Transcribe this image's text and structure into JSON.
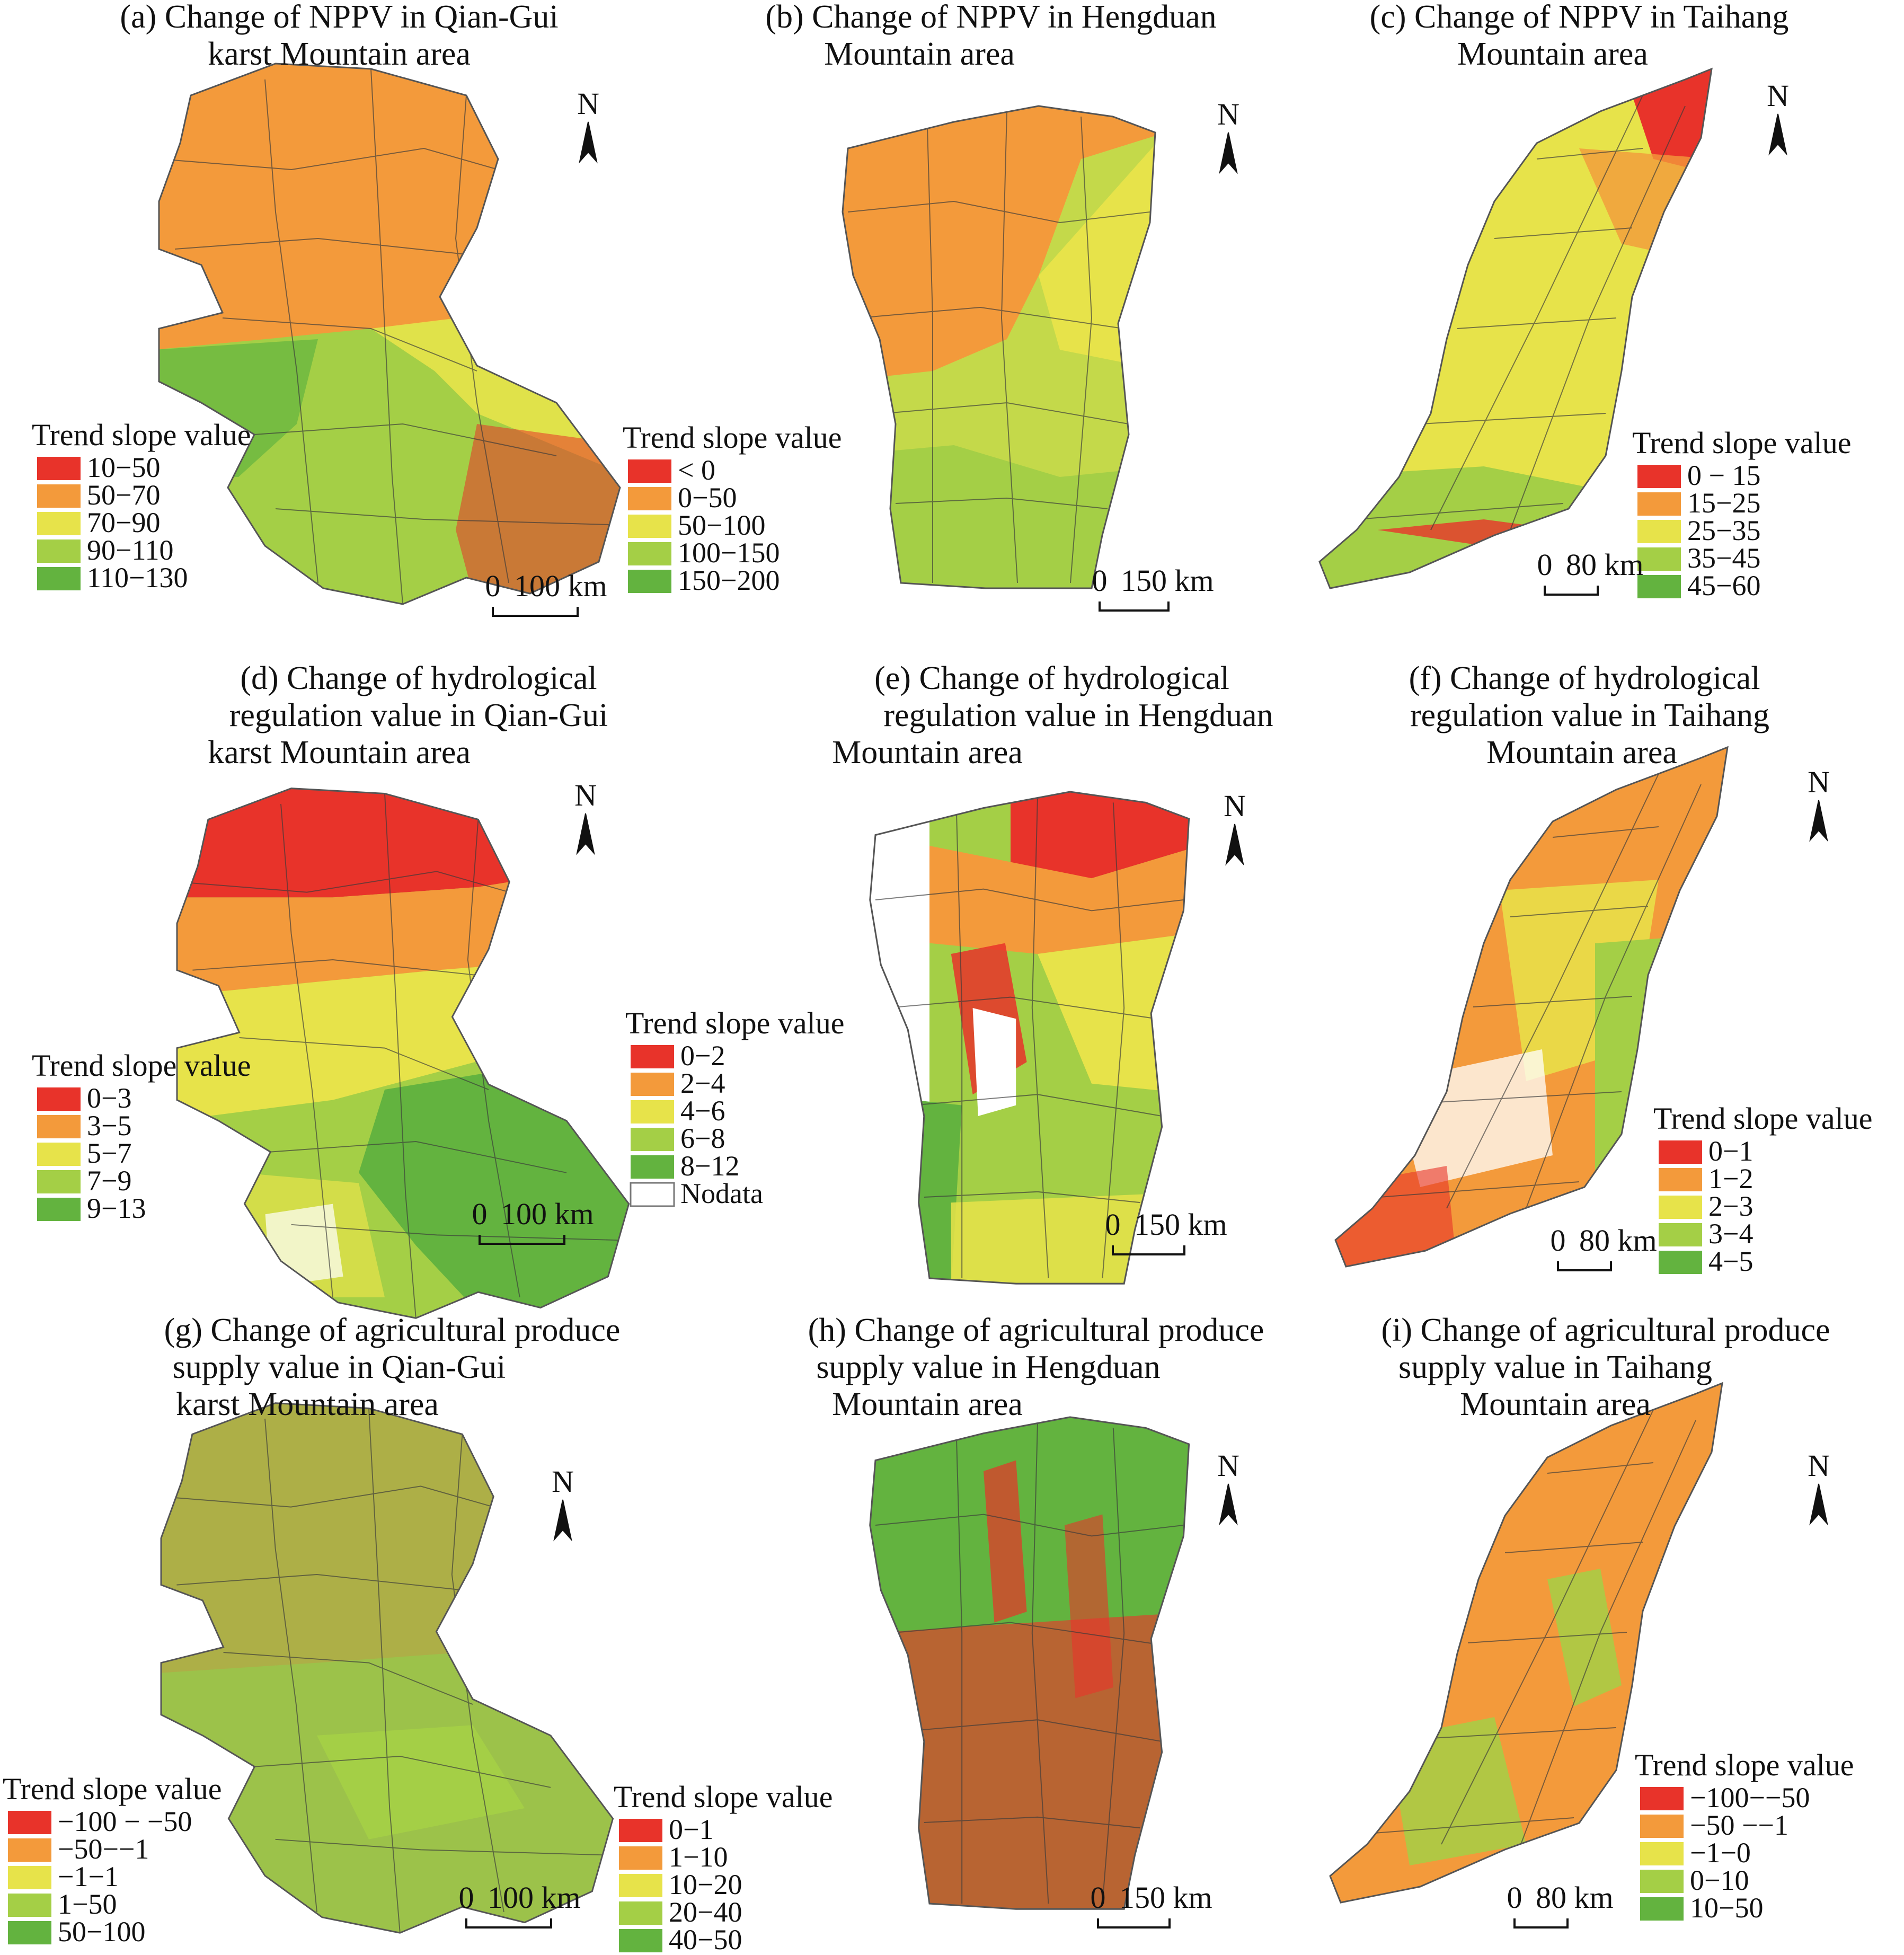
{
  "colors": {
    "red": "#e8332a",
    "orange": "#f39a3b",
    "yellow": "#e7e34a",
    "lightgreen": "#a4cf46",
    "green": "#63b33f",
    "nodata": "#ffffff",
    "boundary": "#3a3a3a"
  },
  "north_label": "N",
  "panels": [
    {
      "id": "a",
      "title": [
        "(a) Change of NPPV in Qian-Gui",
        "karst Mountain area"
      ],
      "legend_title": "Trend slope value",
      "legend": [
        {
          "label": "10−50",
          "color": "red"
        },
        {
          "label": "50−70",
          "color": "orange"
        },
        {
          "label": "70−90",
          "color": "yellow"
        },
        {
          "label": "90−110",
          "color": "lightgreen"
        },
        {
          "label": "110−130",
          "color": "green"
        }
      ],
      "scale": {
        "zero": "0",
        "value": "100 km"
      }
    },
    {
      "id": "b",
      "title": [
        "(b) Change of NPPV in Hengduan",
        "Mountain area"
      ],
      "legend_title": "Trend slope value",
      "legend": [
        {
          "label": "< 0",
          "color": "red"
        },
        {
          "label": "0−50",
          "color": "orange"
        },
        {
          "label": "50−100",
          "color": "yellow"
        },
        {
          "label": "100−150",
          "color": "lightgreen"
        },
        {
          "label": "150−200",
          "color": "green"
        }
      ],
      "scale": {
        "zero": "0",
        "value": "150 km"
      }
    },
    {
      "id": "c",
      "title": [
        "(c) Change of NPPV in Taihang",
        "Mountain area"
      ],
      "legend_title": "Trend slope value",
      "legend": [
        {
          "label": "0 − 15",
          "color": "red"
        },
        {
          "label": "15−25",
          "color": "orange"
        },
        {
          "label": "25−35",
          "color": "yellow"
        },
        {
          "label": "35−45",
          "color": "lightgreen"
        },
        {
          "label": "45−60",
          "color": "green"
        }
      ],
      "scale": {
        "zero": "0",
        "value": "80 km"
      }
    },
    {
      "id": "d",
      "title": [
        "(d) Change of hydrological",
        "regulation value in Qian-Gui",
        "karst Mountain area"
      ],
      "legend_title": "Trend slope value",
      "legend": [
        {
          "label": "0−3",
          "color": "red"
        },
        {
          "label": "3−5",
          "color": "orange"
        },
        {
          "label": "5−7",
          "color": "yellow"
        },
        {
          "label": "7−9",
          "color": "lightgreen"
        },
        {
          "label": "9−13",
          "color": "green"
        }
      ],
      "scale": {
        "zero": "0",
        "value": "100 km"
      }
    },
    {
      "id": "e",
      "title": [
        "(e) Change of hydrological",
        "regulation value in Hengduan",
        "Mountain area"
      ],
      "legend_title": "Trend slope value",
      "legend": [
        {
          "label": "0−2",
          "color": "red"
        },
        {
          "label": "2−4",
          "color": "orange"
        },
        {
          "label": "4−6",
          "color": "yellow"
        },
        {
          "label": "6−8",
          "color": "lightgreen"
        },
        {
          "label": "8−12",
          "color": "green"
        },
        {
          "label": "Nodata",
          "color": "nodata"
        }
      ],
      "scale": {
        "zero": "0",
        "value": "150 km"
      }
    },
    {
      "id": "f",
      "title": [
        "(f) Change of hydrological",
        "regulation value in Taihang",
        "Mountain area"
      ],
      "legend_title": "Trend slope value",
      "legend": [
        {
          "label": "0−1",
          "color": "red"
        },
        {
          "label": "1−2",
          "color": "orange"
        },
        {
          "label": "2−3",
          "color": "yellow"
        },
        {
          "label": "3−4",
          "color": "lightgreen"
        },
        {
          "label": "4−5",
          "color": "green"
        }
      ],
      "scale": {
        "zero": "0",
        "value": "80 km"
      }
    },
    {
      "id": "g",
      "title": [
        "(g) Change of agricultural produce",
        "supply value in Qian-Gui",
        "karst Mountain area"
      ],
      "legend_title": "Trend slope value",
      "legend": [
        {
          "label": "−100 − −50",
          "color": "red"
        },
        {
          "label": "−50−−1",
          "color": "orange"
        },
        {
          "label": "−1−1",
          "color": "yellow"
        },
        {
          "label": "1−50",
          "color": "lightgreen"
        },
        {
          "label": "50−100",
          "color": "green"
        }
      ],
      "scale": {
        "zero": "0",
        "value": "100 km"
      }
    },
    {
      "id": "h",
      "title": [
        "(h) Change of agricultural produce",
        "supply value in Hengduan",
        "Mountain area"
      ],
      "legend_title": "Trend slope value",
      "legend": [
        {
          "label": "0−1",
          "color": "red"
        },
        {
          "label": "1−10",
          "color": "orange"
        },
        {
          "label": "10−20",
          "color": "yellow"
        },
        {
          "label": "20−40",
          "color": "lightgreen"
        },
        {
          "label": "40−50",
          "color": "green"
        }
      ],
      "scale": {
        "zero": "0",
        "value": "150 km"
      }
    },
    {
      "id": "i",
      "title": [
        "(i) Change of agricultural produce",
        "supply value in Taihang",
        "Mountain area"
      ],
      "legend_title": "Trend slope value",
      "legend": [
        {
          "label": "−100−−50",
          "color": "red"
        },
        {
          "label": "−50 −−1",
          "color": "orange"
        },
        {
          "label": "−1−0",
          "color": "yellow"
        },
        {
          "label": "0−10",
          "color": "lightgreen"
        },
        {
          "label": "10−50",
          "color": "green"
        }
      ],
      "scale": {
        "zero": "0",
        "value": "80 km"
      }
    }
  ]
}
